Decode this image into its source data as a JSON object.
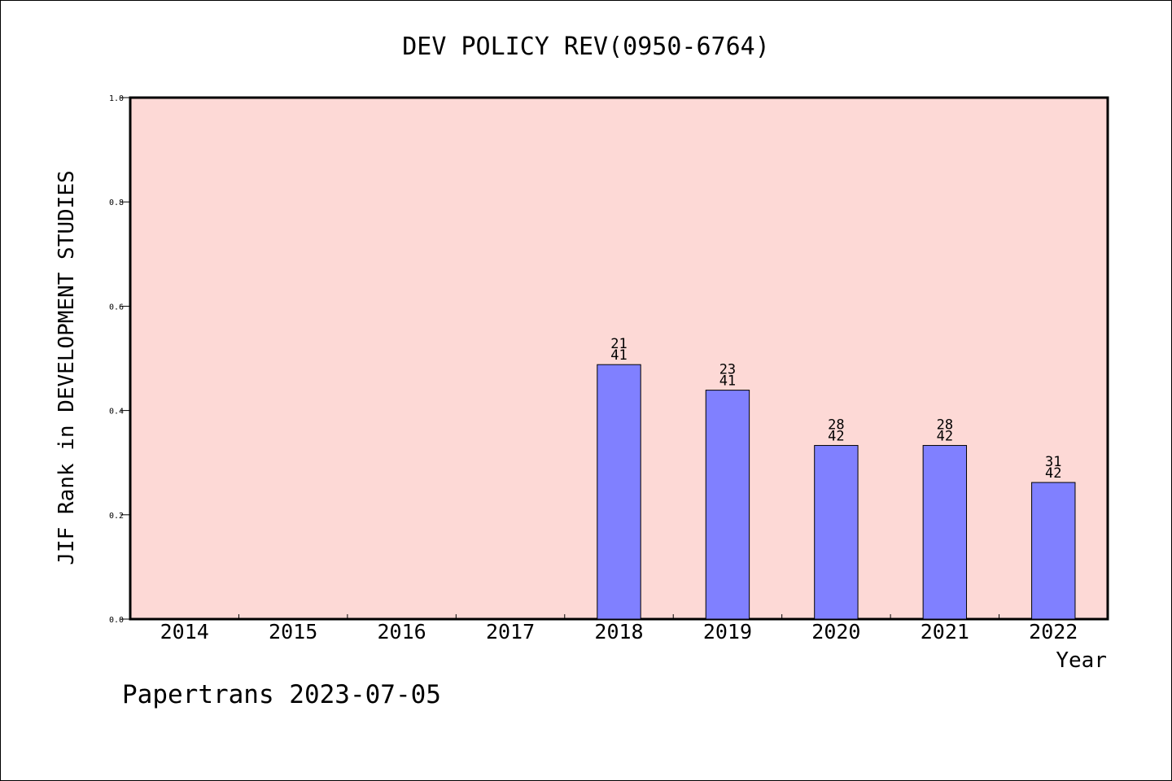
{
  "footer": {
    "text": "Papertrans 2023-07-05"
  },
  "chart_data": {
    "type": "bar",
    "title": "DEV POLICY REV(0950-6764)",
    "xlabel": "Year",
    "ylabel": "JIF Rank in DEVELOPMENT STUDIES",
    "ylim": [
      0,
      1.0
    ],
    "yticks": [
      "0.0",
      "0.2",
      "0.4",
      "0.6",
      "0.8",
      "1.0"
    ],
    "categories": [
      "2014",
      "2015",
      "2016",
      "2017",
      "2018",
      "2019",
      "2020",
      "2021",
      "2022"
    ],
    "values": [
      null,
      null,
      null,
      null,
      0.488,
      0.439,
      0.333,
      0.333,
      0.262
    ],
    "rank": [
      null,
      null,
      null,
      null,
      "21",
      "23",
      "28",
      "28",
      "31"
    ],
    "total": [
      null,
      null,
      null,
      null,
      "41",
      "41",
      "42",
      "42",
      "42"
    ],
    "grid": false,
    "colors": {
      "plot_bg": "#fdd9d6",
      "bar": "#8080ff",
      "bar_edge": "#000000"
    }
  }
}
